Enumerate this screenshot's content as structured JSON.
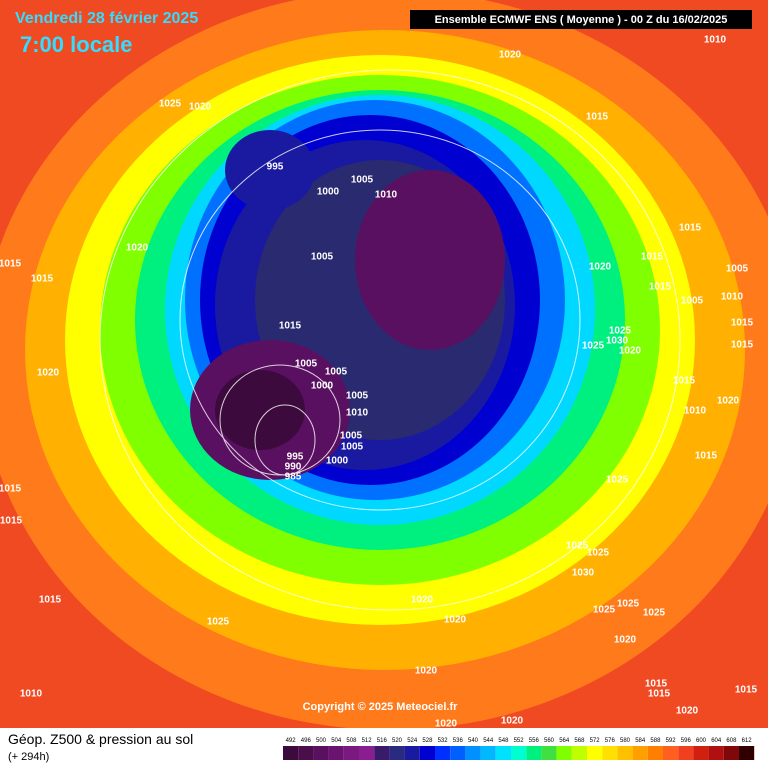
{
  "header": {
    "date": "Vendredi 28 février 2025",
    "time": "7:00 locale",
    "model": "Ensemble ECMWF ENS  ( Moyenne )  -  00 Z du 16/02/2025"
  },
  "copyright": "Copyright © 2025 Meteociel.fr",
  "footer": {
    "title": "Géop. Z500 & pression au sol",
    "lead": "(+ 294h)"
  },
  "isobar_labels": [
    "1020",
    "1010",
    "1025",
    "1020",
    "1015",
    "995",
    "1000",
    "1005",
    "1010",
    "1015",
    "1020",
    "1005",
    "1020",
    "1015",
    "1005",
    "1015",
    "1015",
    "1015",
    "1015",
    "1005",
    "1010",
    "1025",
    "1030",
    "1025",
    "1020",
    "1015",
    "1015",
    "1020",
    "1005",
    "1005",
    "1000",
    "1005",
    "1010",
    "1015",
    "1010",
    "1020",
    "1005",
    "1005",
    "1000",
    "995",
    "990",
    "985",
    "1015",
    "1025",
    "1015",
    "1015",
    "1025",
    "1025",
    "1030",
    "1020",
    "1015",
    "1025",
    "1025",
    "1025",
    "1025",
    "1020",
    "1020",
    "1020",
    "1015",
    "1015",
    "1010",
    "1015",
    "1020",
    "1020",
    "1020"
  ],
  "scale": [
    492,
    496,
    500,
    504,
    508,
    512,
    516,
    520,
    524,
    528,
    532,
    536,
    540,
    544,
    548,
    552,
    556,
    560,
    564,
    568,
    572,
    576,
    580,
    584,
    588,
    592,
    596,
    600,
    604,
    608,
    612
  ],
  "scale_colors": [
    "#3d0a3d",
    "#4a0f4a",
    "#5a1060",
    "#6a1470",
    "#7a1a80",
    "#8a1e90",
    "#3a1a6a",
    "#2a2a80",
    "#1a1aa0",
    "#0000d0",
    "#0030ff",
    "#0060ff",
    "#0090ff",
    "#00b8ff",
    "#00e0ff",
    "#00ffd0",
    "#00f080",
    "#40e040",
    "#80ff00",
    "#c0ff00",
    "#ffff00",
    "#ffe000",
    "#ffc000",
    "#ffa000",
    "#ff8000",
    "#ff6020",
    "#f04020",
    "#d02010",
    "#b01010",
    "#800808",
    "#300000"
  ]
}
